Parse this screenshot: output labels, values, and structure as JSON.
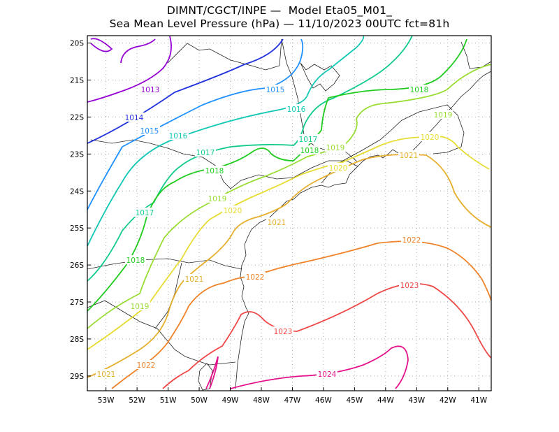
{
  "header": {
    "line1": "DIMNT/CGCT/INPE —  Model Eta05_M01_",
    "line2": "Sea Mean Level Pressure (hPa) — 11/10/2023 00UTC fct=81h"
  },
  "map": {
    "lon_range": [
      -53.6,
      -40.6
    ],
    "lat_range": [
      -29.4,
      -19.8
    ],
    "x_ticks": [
      {
        "lon": -53,
        "label": "53W"
      },
      {
        "lon": -52,
        "label": "52W"
      },
      {
        "lon": -51,
        "label": "51W"
      },
      {
        "lon": -50,
        "label": "50W"
      },
      {
        "lon": -49,
        "label": "49W"
      },
      {
        "lon": -48,
        "label": "48W"
      },
      {
        "lon": -47,
        "label": "47W"
      },
      {
        "lon": -46,
        "label": "46W"
      },
      {
        "lon": -45,
        "label": "45W"
      },
      {
        "lon": -44,
        "label": "44W"
      },
      {
        "lon": -43,
        "label": "43W"
      },
      {
        "lon": -42,
        "label": "42W"
      },
      {
        "lon": -41,
        "label": "41W"
      }
    ],
    "y_ticks": [
      {
        "lat": -20,
        "label": "20S"
      },
      {
        "lat": -21,
        "label": "21S"
      },
      {
        "lat": -22,
        "label": "22S"
      },
      {
        "lat": -23,
        "label": "23S"
      },
      {
        "lat": -24,
        "label": "24S"
      },
      {
        "lat": -25,
        "label": "25S"
      },
      {
        "lat": -26,
        "label": "26S"
      },
      {
        "lat": -27,
        "label": "27S"
      },
      {
        "lat": -28,
        "label": "28S"
      },
      {
        "lat": -29,
        "label": "29S"
      }
    ],
    "grid": "dotted",
    "isobars": [
      {
        "value": 1013,
        "label": "1013",
        "color": "#9400d3"
      },
      {
        "value": 1014,
        "label": "1014",
        "color": "#2233dd"
      },
      {
        "value": 1015,
        "label": "1015",
        "color": "#1e90ff"
      },
      {
        "value": 1016,
        "label": "1016",
        "color": "#10c8b4"
      },
      {
        "value": 1017,
        "label": "1017",
        "color": "#10cc88"
      },
      {
        "value": 1018,
        "label": "1018",
        "color": "#20cc20"
      },
      {
        "value": 1019,
        "label": "1019",
        "color": "#99dd33"
      },
      {
        "value": 1020,
        "label": "1020",
        "color": "#e6dc32"
      },
      {
        "value": 1021,
        "label": "1021",
        "color": "#e6af2d"
      },
      {
        "value": 1022,
        "label": "1022",
        "color": "#f08228"
      },
      {
        "value": 1023,
        "label": "1023",
        "color": "#f04646"
      },
      {
        "value": 1024,
        "label": "1024",
        "color": "#e6128c"
      }
    ]
  }
}
